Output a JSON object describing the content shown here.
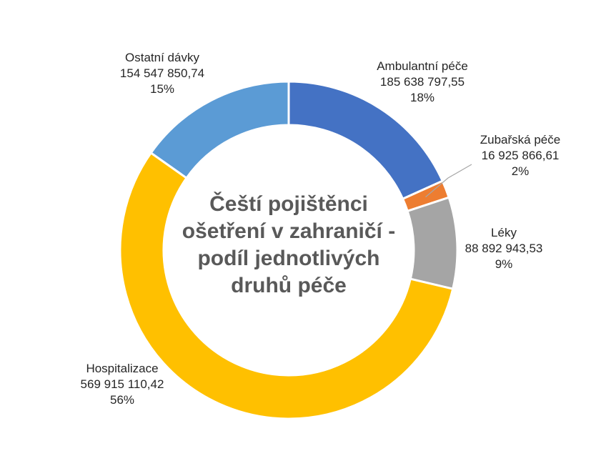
{
  "chart_data": {
    "type": "pie",
    "variant": "doughnut",
    "title_lines": [
      "Čeští pojištěnci",
      "ošetření v zahraničí -",
      "podíl jednotlivých",
      "druhů péče"
    ],
    "slices": [
      {
        "name": "Ambulantní péče",
        "value": 185638797.55,
        "value_label": "185 638 797,55",
        "percent_label": "18%",
        "color": "#4472C4"
      },
      {
        "name": "Zubařská péče",
        "value": 16925866.61,
        "value_label": "16 925 866,61",
        "percent_label": "2%",
        "color": "#ED7D31"
      },
      {
        "name": "Léky",
        "value": 88892943.53,
        "value_label": "88 892 943,53",
        "percent_label": "9%",
        "color": "#A5A5A5"
      },
      {
        "name": "Hospitalizace",
        "value": 569915110.42,
        "value_label": "569 915 110,42",
        "percent_label": "56%",
        "color": "#FFC000"
      },
      {
        "name": "Ostatní dávky",
        "value": 154547850.74,
        "value_label": "154 547 850,74",
        "percent_label": "15%",
        "color": "#5B9BD5"
      }
    ],
    "legend": "none",
    "data_labels": "outside"
  }
}
